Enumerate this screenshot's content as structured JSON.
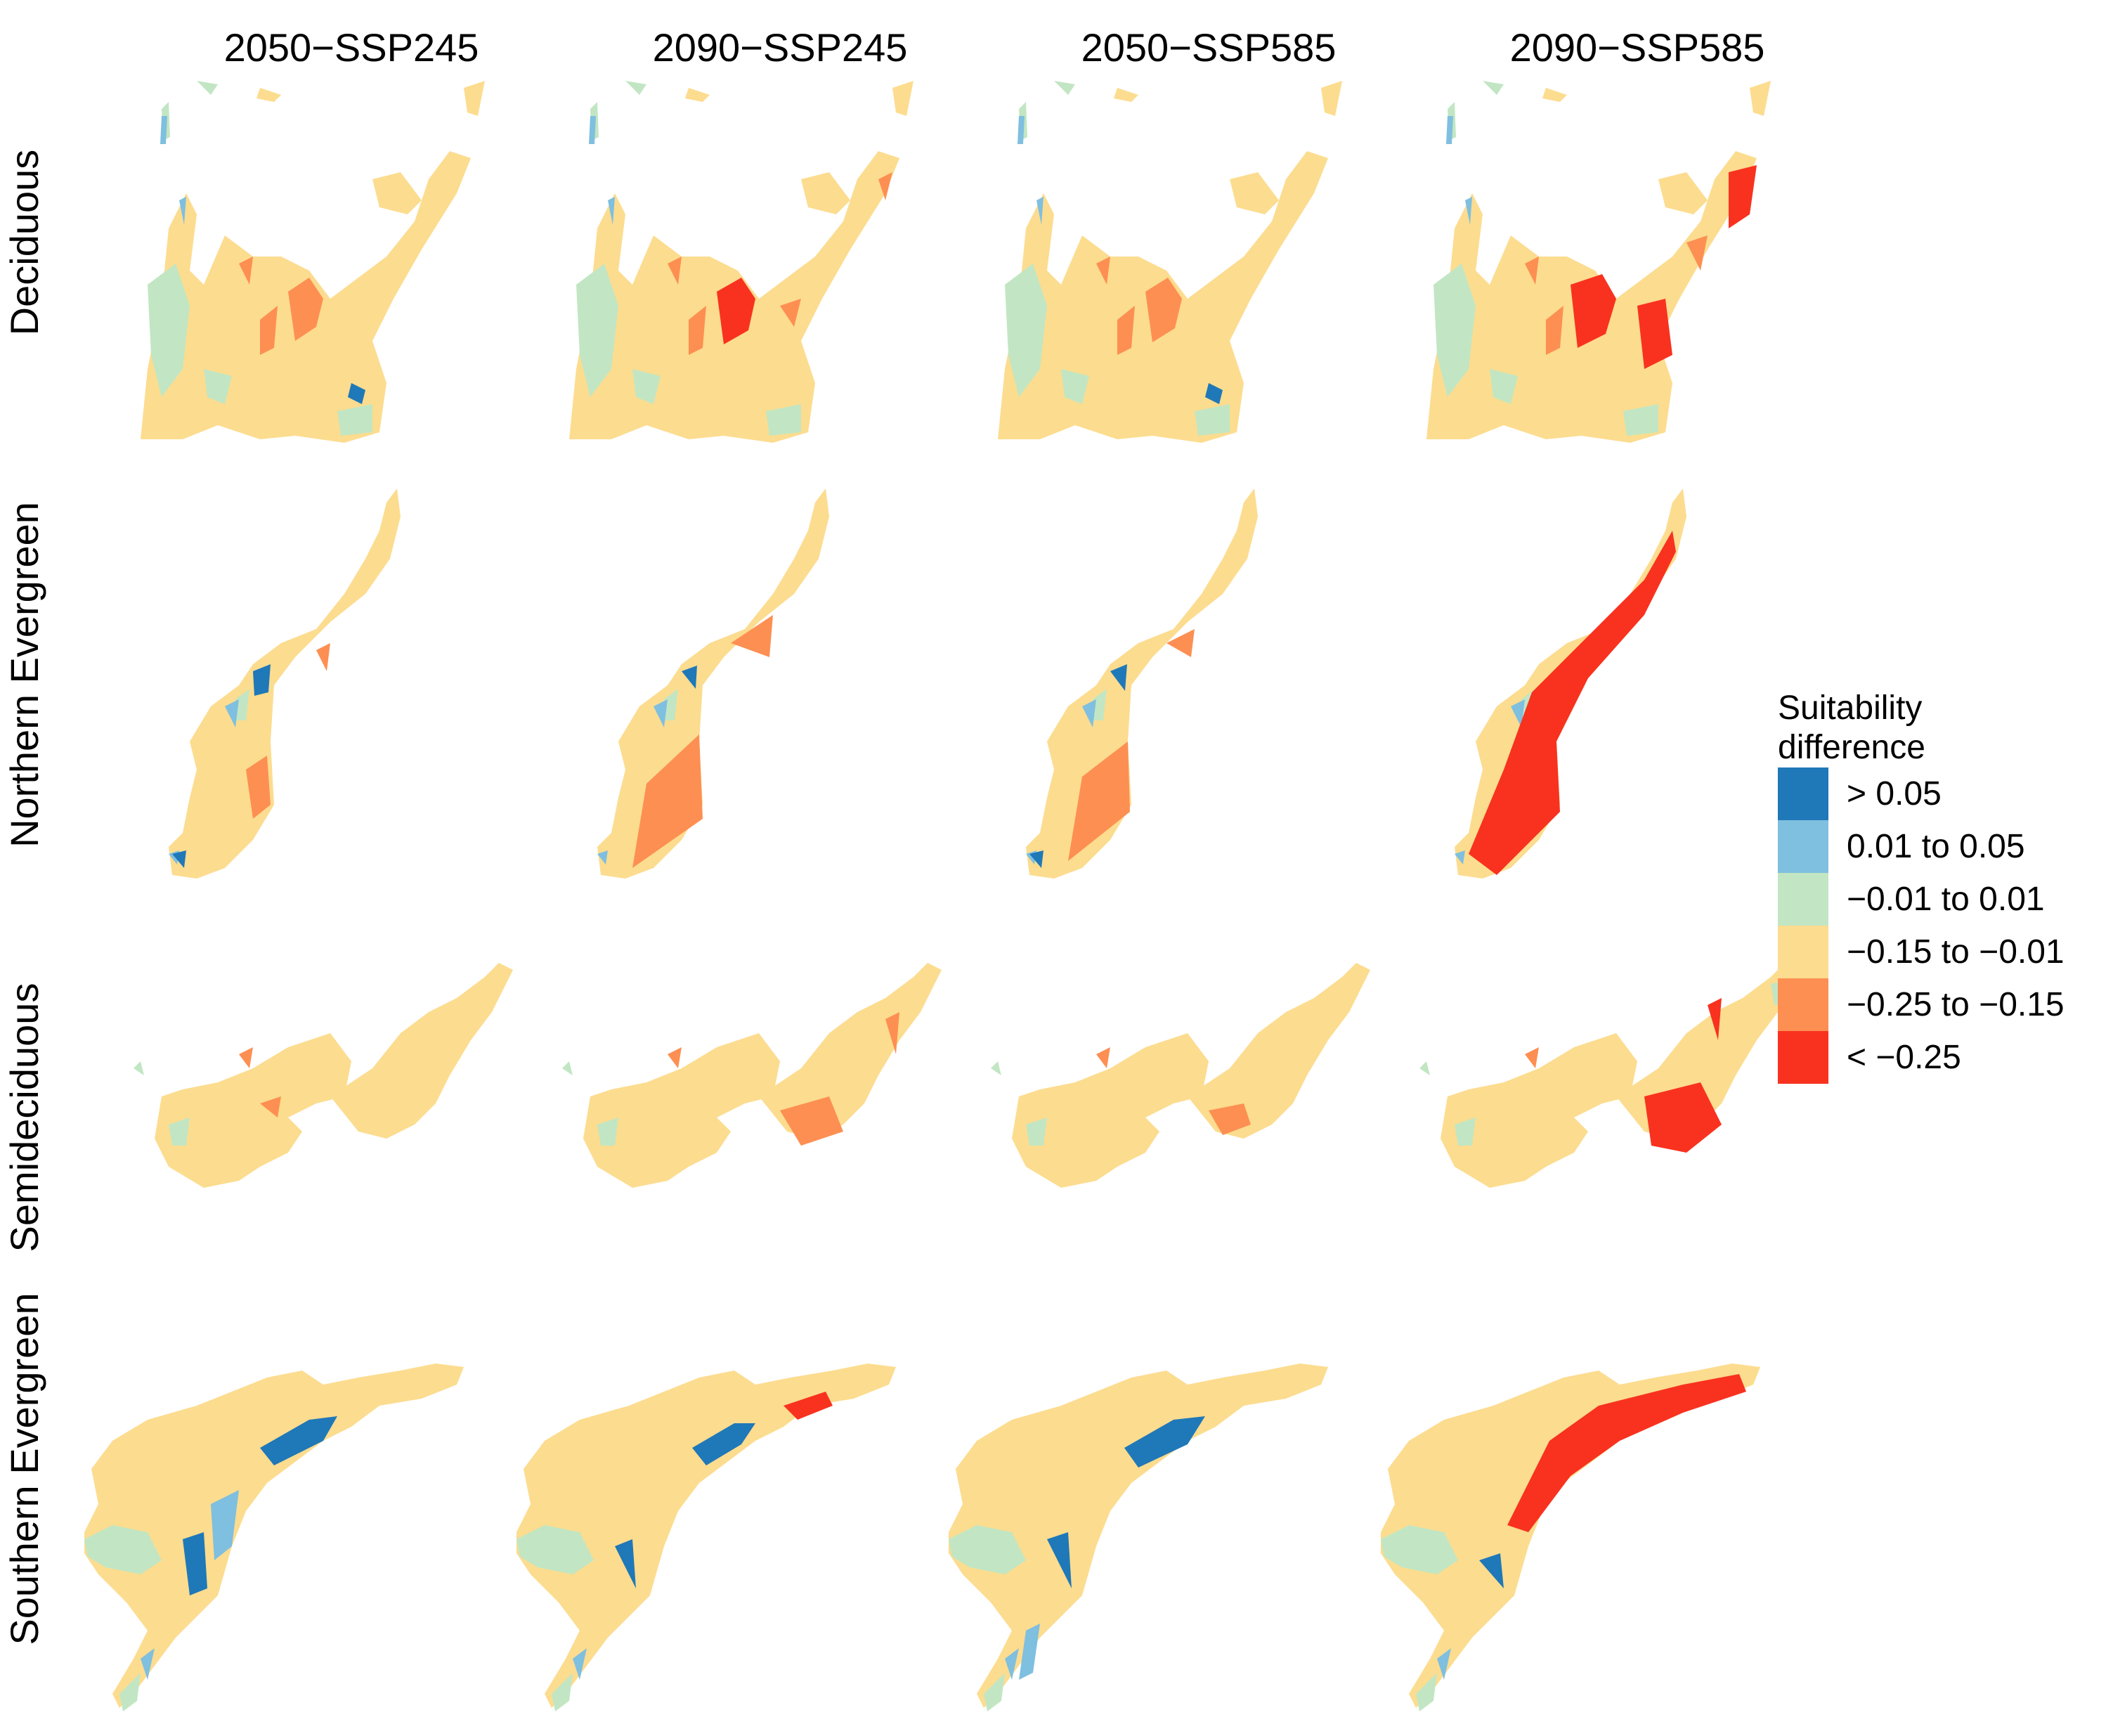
{
  "columns": [
    "2050−SSP245",
    "2090−SSP245",
    "2050−SSP585",
    "2090−SSP585"
  ],
  "rows": [
    "Deciduous",
    "Northern Evergreen",
    "Semideciduous",
    "Southern Evergreen"
  ],
  "legend": {
    "title_line1": "Suitability",
    "title_line2": "difference",
    "classes": [
      {
        "label": "> 0.05",
        "color": "#1f78b8"
      },
      {
        "label": "0.01 to 0.05",
        "color": "#7fbfdf"
      },
      {
        "label": "−0.01 to 0.01",
        "color": "#c2e6c3"
      },
      {
        "label": "−0.15 to −0.01",
        "color": "#fcdc8f"
      },
      {
        "label": "−0.25 to −0.15",
        "color": "#fd8f52"
      },
      {
        "label": "< −0.25",
        "color": "#f8321f"
      }
    ]
  }
}
